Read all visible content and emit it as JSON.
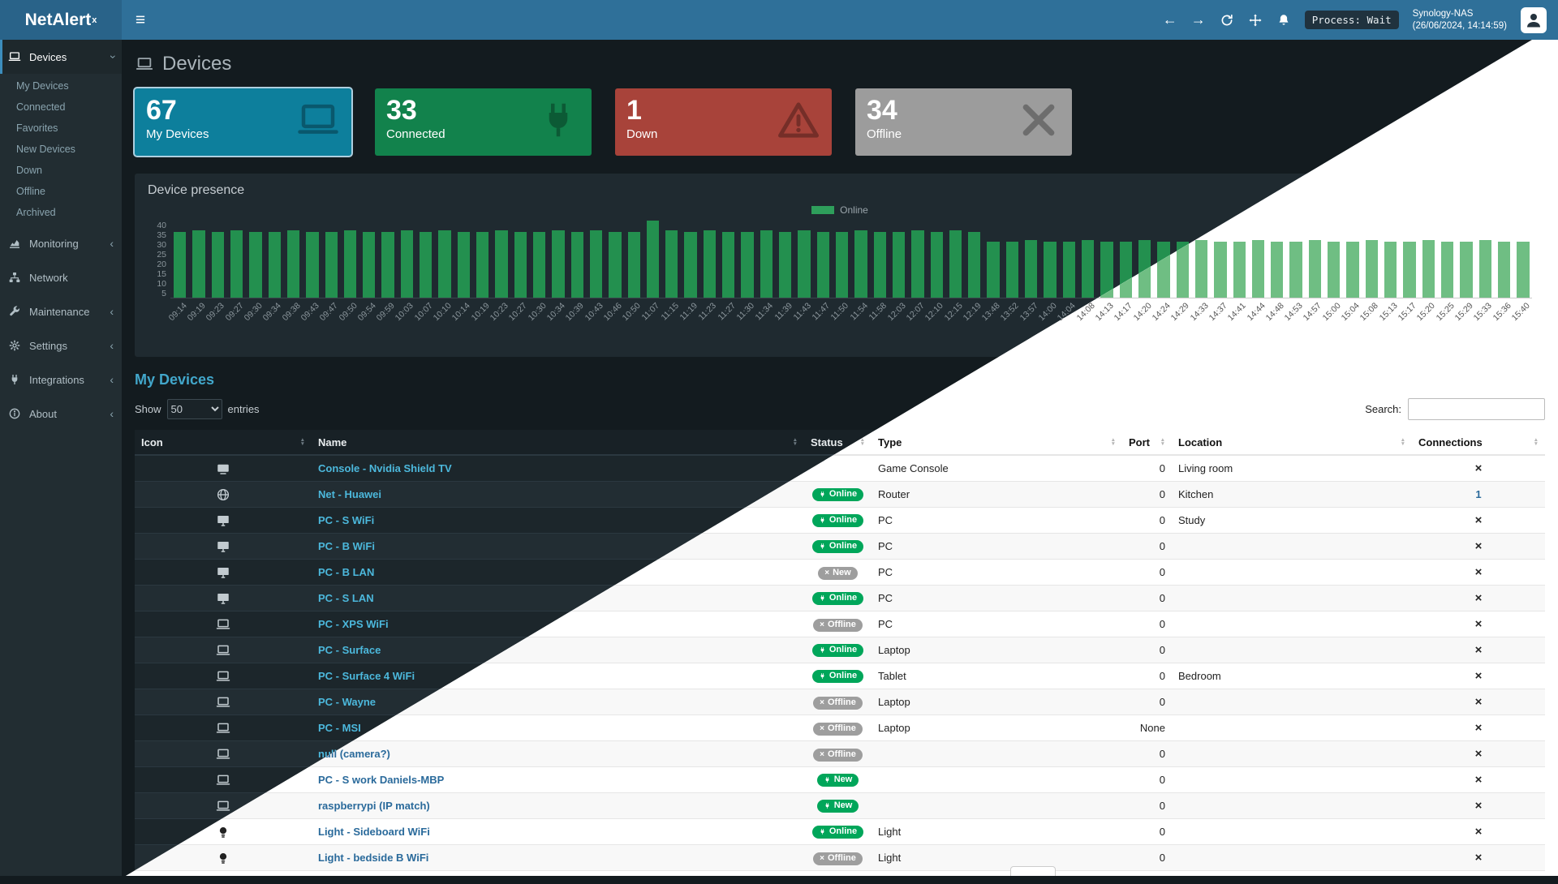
{
  "app": {
    "brand": "NetAlert",
    "brand_sup": "x"
  },
  "navbar": {
    "process_badge": "Process: Wait",
    "host_name": "Synology-NAS",
    "host_time": "(26/06/2024, 14:14:59)",
    "icons": [
      "hamburger-icon",
      "back-icon",
      "forward-icon",
      "refresh-icon",
      "move-icon",
      "bell-icon",
      "user-avatar"
    ]
  },
  "sidebar": {
    "items": [
      {
        "label": "Devices",
        "icon": "laptop-icon",
        "expanded": true,
        "children": [
          "My Devices",
          "Connected",
          "Favorites",
          "New Devices",
          "Down",
          "Offline",
          "Archived"
        ]
      },
      {
        "label": "Monitoring",
        "icon": "chart-icon",
        "chevron": true
      },
      {
        "label": "Network",
        "icon": "network-icon",
        "chevron": false
      },
      {
        "label": "Maintenance",
        "icon": "wrench-icon",
        "chevron": true
      },
      {
        "label": "Settings",
        "icon": "gear-icon",
        "chevron": true
      },
      {
        "label": "Integrations",
        "icon": "plug-icon",
        "chevron": true
      },
      {
        "label": "About",
        "icon": "info-icon",
        "chevron": true
      }
    ]
  },
  "page": {
    "title": "Devices"
  },
  "cards": [
    {
      "value": "67",
      "label": "My Devices",
      "color": "#0d7f9c",
      "icon": "laptop-icon",
      "highlight": true
    },
    {
      "value": "33",
      "label": "Connected",
      "color": "#12824c",
      "icon": "plug-icon",
      "highlight": false
    },
    {
      "value": "1",
      "label": "Down",
      "color": "#a8433a",
      "icon": "warning-icon",
      "highlight": false
    },
    {
      "value": "34",
      "label": "Offline",
      "color": "#9c9c9c",
      "icon": "x-icon",
      "highlight": false
    }
  ],
  "chart_data": {
    "type": "bar",
    "title": "Device presence",
    "series": [
      {
        "name": "Online",
        "values": [
          34,
          35,
          34,
          35,
          34,
          34,
          35,
          34,
          34,
          35,
          34,
          34,
          35,
          34,
          35,
          34,
          34,
          35,
          34,
          34,
          35,
          34,
          35,
          34,
          34,
          40,
          35,
          34,
          35,
          34,
          34,
          35,
          34,
          35,
          34,
          34,
          35,
          34,
          34,
          35,
          34,
          35,
          34,
          29,
          29,
          30,
          29,
          29,
          30,
          29,
          29,
          30,
          29,
          29,
          30,
          29,
          29,
          30,
          29,
          29,
          30,
          29,
          29,
          30,
          29,
          29,
          30,
          29,
          29,
          30,
          29,
          29
        ]
      }
    ],
    "x": [
      "09:14",
      "09:19",
      "09:23",
      "09:27",
      "09:30",
      "09:34",
      "09:38",
      "09:43",
      "09:47",
      "09:50",
      "09:54",
      "09:59",
      "10:03",
      "10:07",
      "10:10",
      "10:14",
      "10:19",
      "10:23",
      "10:27",
      "10:30",
      "10:34",
      "10:39",
      "10:43",
      "10:46",
      "10:50",
      "11:07",
      "11:15",
      "11:19",
      "11:23",
      "11:27",
      "11:30",
      "11:34",
      "11:39",
      "11:43",
      "11:47",
      "11:50",
      "11:54",
      "11:58",
      "12:03",
      "12:07",
      "12:10",
      "12:15",
      "12:19",
      "13:48",
      "13:52",
      "13:57",
      "14:00",
      "14:04",
      "14:08",
      "14:13",
      "14:17",
      "14:20",
      "14:24",
      "14:29",
      "14:33",
      "14:37",
      "14:41",
      "14:44",
      "14:48",
      "14:53",
      "14:57",
      "15:00",
      "15:04",
      "15:08",
      "15:13",
      "15:17",
      "15:20",
      "15:25",
      "15:29",
      "15:33",
      "15:36",
      "15:40"
    ],
    "xlabel": "",
    "ylabel": "",
    "ylim": [
      0,
      40
    ],
    "yticks": [
      "40",
      "35",
      "30",
      "25",
      "20",
      "15",
      "10",
      "5"
    ],
    "grid": false,
    "legend_position": "top",
    "bar_color_dark": "#23904f",
    "bar_color_light": "#6fbe83"
  },
  "devices": {
    "title": "My Devices",
    "show_label": "Show",
    "page_size": "50",
    "entries_label": "entries",
    "search_label": "Search:",
    "search_value": "",
    "columns": [
      "Icon",
      "Name",
      "Status",
      "Type",
      "Port",
      "Location",
      "Connections"
    ],
    "rows": [
      {
        "icon": "tv-icon",
        "name": "Console - Nvidia Shield TV",
        "status": null,
        "type": "Game Console",
        "port": "0",
        "location": "Living room",
        "connections": "x"
      },
      {
        "icon": "globe-icon",
        "name": "Net - Huawei",
        "status": {
          "label": "Online",
          "state": "on"
        },
        "type": "Router",
        "port": "0",
        "location": "Kitchen",
        "connections": "1"
      },
      {
        "icon": "desktop-icon",
        "name": "PC - S WiFi",
        "status": {
          "label": "Online",
          "state": "on"
        },
        "type": "PC",
        "port": "0",
        "location": "Study",
        "connections": "x"
      },
      {
        "icon": "desktop-icon",
        "name": "PC - B WiFi",
        "status": {
          "label": "Online",
          "state": "on"
        },
        "type": "PC",
        "port": "0",
        "location": "",
        "connections": "x"
      },
      {
        "icon": "desktop-icon",
        "name": "PC - B LAN",
        "status": {
          "label": "New",
          "state": "off"
        },
        "type": "PC",
        "port": "0",
        "location": "",
        "connections": "x"
      },
      {
        "icon": "desktop-icon",
        "name": "PC - S LAN",
        "status": {
          "label": "Online",
          "state": "on"
        },
        "type": "PC",
        "port": "0",
        "location": "",
        "connections": "x"
      },
      {
        "icon": "laptop-icon",
        "name": "PC - XPS WiFi",
        "status": {
          "label": "Offline",
          "state": "off"
        },
        "type": "PC",
        "port": "0",
        "location": "",
        "connections": "x"
      },
      {
        "icon": "laptop-icon",
        "name": "PC - Surface",
        "status": {
          "label": "Online",
          "state": "on"
        },
        "type": "Laptop",
        "port": "0",
        "location": "",
        "connections": "x"
      },
      {
        "icon": "laptop-icon",
        "name": "PC - Surface 4 WiFi",
        "status": {
          "label": "Online",
          "state": "on"
        },
        "type": "Tablet",
        "port": "0",
        "location": "Bedroom",
        "connections": "x"
      },
      {
        "icon": "laptop-icon",
        "name": "PC - Wayne",
        "status": {
          "label": "Offline",
          "state": "off"
        },
        "type": "Laptop",
        "port": "0",
        "location": "",
        "connections": "x"
      },
      {
        "icon": "laptop-icon",
        "name": "PC - MSI",
        "status": {
          "label": "Offline",
          "state": "off"
        },
        "type": "Laptop",
        "port": "None",
        "location": "",
        "connections": "x"
      },
      {
        "icon": "laptop-icon",
        "name": "null (camera?)",
        "status": {
          "label": "Offline",
          "state": "off"
        },
        "type": "",
        "port": "0",
        "location": "",
        "connections": "x"
      },
      {
        "icon": "laptop-icon",
        "name": "PC - S work Daniels-MBP",
        "status": {
          "label": "New",
          "state": "on"
        },
        "type": "",
        "port": "0",
        "location": "",
        "connections": "x"
      },
      {
        "icon": "laptop-icon",
        "name": "raspberrypi (IP match)",
        "status": {
          "label": "New",
          "state": "on"
        },
        "type": "",
        "port": "0",
        "location": "",
        "connections": "x"
      },
      {
        "icon": "bulb-icon",
        "name": "Light - Sideboard WiFi",
        "status": {
          "label": "Online",
          "state": "on"
        },
        "type": "Light",
        "port": "0",
        "location": "",
        "connections": "x"
      },
      {
        "icon": "bulb-icon",
        "name": "Light - bedside B WiFi",
        "status": {
          "label": "Offline",
          "state": "off"
        },
        "type": "Light",
        "port": "0",
        "location": "",
        "connections": "x"
      }
    ]
  },
  "colors": {
    "navbar": "#2f7099",
    "sidebar": "#222d32",
    "accent_link": "#3c8dbc",
    "online_badge": "#00a65a",
    "offline_badge": "#9e9e9e"
  }
}
